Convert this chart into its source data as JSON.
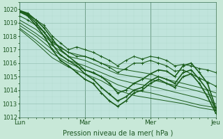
{
  "xlabel": "Pression niveau de la mer( hPa )",
  "ylim": [
    1012,
    1020.5
  ],
  "xlim": [
    0,
    72
  ],
  "ytick_positions": [
    1012,
    1013,
    1014,
    1015,
    1016,
    1017,
    1018,
    1019,
    1020
  ],
  "xtick_positions": [
    0,
    24,
    48,
    72
  ],
  "xtick_labels": [
    "Lun",
    "Mar",
    "Mer",
    "Jeu"
  ],
  "background_color": "#c8e8d8",
  "plot_bg_color": "#c0e4dc",
  "grid_major_color": "#8ab8a8",
  "grid_minor_color": "#a8d0c0",
  "line_color": "#1a5c1a",
  "font_color": "#1a5520",
  "vline_color": "#3a7050",
  "lines": [
    {
      "x": [
        0,
        3,
        6,
        9,
        12,
        15,
        18,
        21,
        24,
        27,
        30,
        33,
        36,
        39,
        42,
        45,
        48,
        51,
        54,
        57,
        60,
        63,
        66,
        69,
        72
      ],
      "y": [
        1019.8,
        1019.6,
        1019.2,
        1018.8,
        1018.0,
        1017.5,
        1017.0,
        1017.2,
        1017.0,
        1016.8,
        1016.5,
        1016.2,
        1015.8,
        1016.2,
        1016.5,
        1016.3,
        1016.5,
        1016.4,
        1016.2,
        1015.8,
        1015.9,
        1015.8,
        1015.6,
        1015.5,
        1015.3
      ],
      "lw": 0.8,
      "marker": true
    },
    {
      "x": [
        0,
        3,
        6,
        9,
        12,
        15,
        18,
        21,
        24,
        27,
        30,
        33,
        36,
        39,
        42,
        45,
        48,
        51,
        54,
        57,
        60,
        63,
        66,
        69,
        72
      ],
      "y": [
        1019.5,
        1019.2,
        1018.8,
        1018.3,
        1017.6,
        1017.2,
        1016.8,
        1016.5,
        1016.5,
        1016.3,
        1016.0,
        1015.7,
        1015.3,
        1015.6,
        1016.0,
        1016.0,
        1016.2,
        1016.0,
        1015.8,
        1015.4,
        1015.5,
        1015.2,
        1014.9,
        1014.6,
        1014.3
      ],
      "lw": 0.8,
      "marker": true
    },
    {
      "x": [
        0,
        6,
        12,
        18,
        24,
        30,
        36,
        42,
        48,
        54,
        60,
        66,
        72
      ],
      "y": [
        1019.2,
        1018.5,
        1017.5,
        1016.8,
        1016.5,
        1016.0,
        1015.6,
        1015.4,
        1015.2,
        1014.8,
        1014.5,
        1014.2,
        1013.8
      ],
      "lw": 0.7,
      "marker": false
    },
    {
      "x": [
        0,
        6,
        12,
        18,
        24,
        30,
        36,
        42,
        48,
        54,
        60,
        66,
        72
      ],
      "y": [
        1019.0,
        1018.2,
        1017.3,
        1016.5,
        1016.2,
        1015.7,
        1015.2,
        1015.0,
        1014.8,
        1014.5,
        1014.2,
        1013.9,
        1013.5
      ],
      "lw": 0.7,
      "marker": false
    },
    {
      "x": [
        0,
        6,
        12,
        18,
        24,
        30,
        36,
        42,
        48,
        54,
        60,
        66,
        72
      ],
      "y": [
        1018.8,
        1018.0,
        1017.0,
        1016.2,
        1015.8,
        1015.3,
        1014.8,
        1014.5,
        1014.3,
        1014.0,
        1013.7,
        1013.4,
        1013.0
      ],
      "lw": 0.7,
      "marker": false
    },
    {
      "x": [
        0,
        6,
        12,
        18,
        24,
        30,
        36,
        42,
        48,
        54,
        60,
        66,
        72
      ],
      "y": [
        1018.6,
        1017.7,
        1016.7,
        1016.0,
        1015.5,
        1015.0,
        1014.4,
        1014.0,
        1013.8,
        1013.5,
        1013.2,
        1012.9,
        1012.7
      ],
      "lw": 0.7,
      "marker": false
    },
    {
      "x": [
        0,
        6,
        12,
        18,
        24,
        30,
        36,
        42,
        48,
        54,
        60,
        66,
        72
      ],
      "y": [
        1018.5,
        1017.5,
        1016.4,
        1015.7,
        1015.2,
        1014.7,
        1014.0,
        1013.6,
        1013.4,
        1013.2,
        1013.0,
        1012.7,
        1012.5
      ],
      "lw": 0.7,
      "marker": false
    },
    {
      "x": [
        0,
        3,
        6,
        9,
        12,
        15,
        18,
        21,
        24,
        27,
        30,
        33,
        36,
        39,
        42,
        45,
        48,
        51,
        54,
        57,
        60,
        63,
        66,
        69,
        72
      ],
      "y": [
        1019.9,
        1019.7,
        1019.2,
        1018.6,
        1017.8,
        1017.0,
        1016.5,
        1016.0,
        1015.5,
        1015.3,
        1015.0,
        1014.5,
        1013.8,
        1014.0,
        1014.5,
        1014.8,
        1015.2,
        1015.5,
        1015.4,
        1015.0,
        1015.8,
        1016.0,
        1015.3,
        1014.5,
        1012.7
      ],
      "lw": 1.2,
      "marker": true
    },
    {
      "x": [
        0,
        3,
        6,
        9,
        12,
        15,
        18,
        21,
        24,
        27,
        30,
        33,
        36,
        39,
        42,
        45,
        48,
        51,
        54,
        57,
        60,
        63,
        66,
        69,
        72
      ],
      "y": [
        1019.9,
        1019.6,
        1019.0,
        1018.3,
        1017.4,
        1016.6,
        1016.2,
        1015.8,
        1015.2,
        1014.8,
        1014.2,
        1013.7,
        1013.2,
        1013.5,
        1014.0,
        1014.2,
        1014.7,
        1015.0,
        1014.8,
        1014.5,
        1015.3,
        1015.5,
        1014.8,
        1014.0,
        1012.5
      ],
      "lw": 1.2,
      "marker": true
    },
    {
      "x": [
        0,
        3,
        6,
        9,
        12,
        15,
        18,
        21,
        24,
        27,
        30,
        33,
        36,
        39,
        42,
        45,
        48,
        51,
        54,
        57,
        60,
        63,
        66,
        69,
        72
      ],
      "y": [
        1019.8,
        1019.5,
        1018.8,
        1018.0,
        1017.0,
        1016.2,
        1015.8,
        1015.3,
        1014.8,
        1014.5,
        1013.8,
        1013.2,
        1012.8,
        1013.2,
        1013.8,
        1014.0,
        1014.5,
        1014.8,
        1014.5,
        1014.2,
        1015.0,
        1015.2,
        1014.5,
        1013.5,
        1012.3
      ],
      "lw": 1.2,
      "marker": true
    }
  ]
}
